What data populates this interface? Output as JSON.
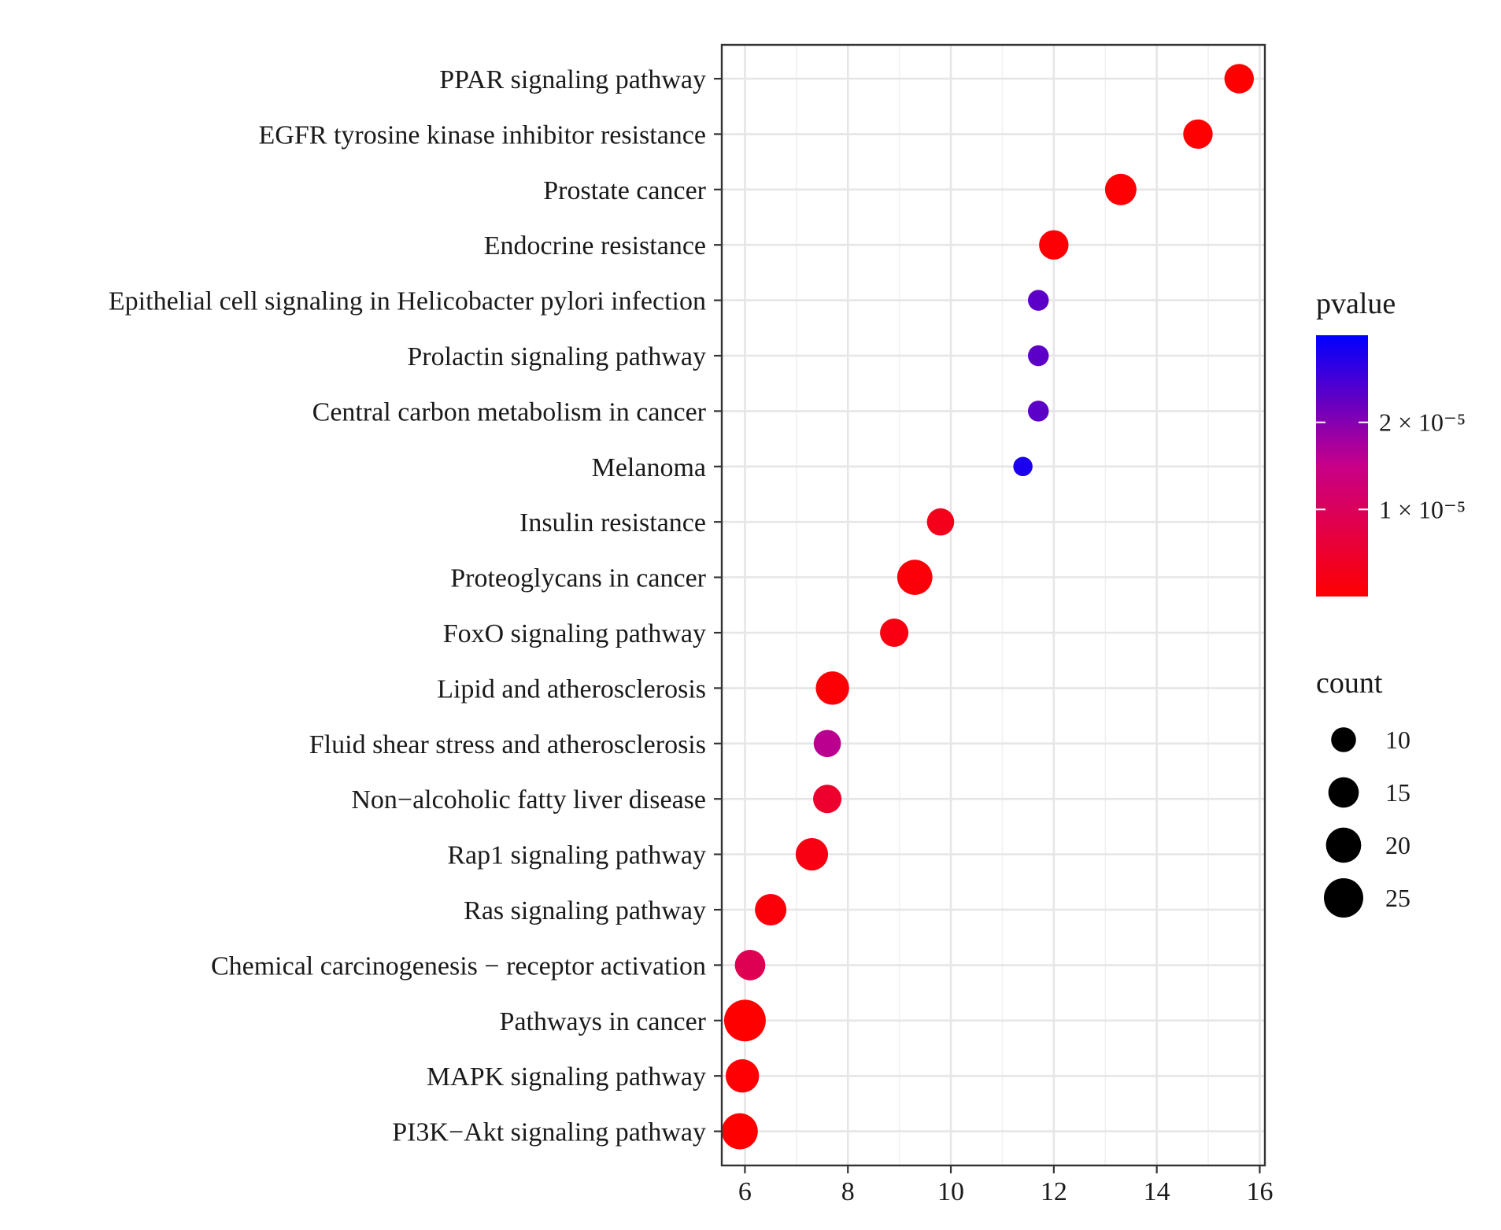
{
  "chart_data": {
    "type": "scatter",
    "title": "",
    "xlabel": "",
    "ylabel": "",
    "xlim": [
      5.55,
      16.1
    ],
    "x_ticks": [
      6,
      8,
      10,
      12,
      14,
      16
    ],
    "x_tick_labels": [
      "6",
      "8",
      "10",
      "12",
      "14",
      "16"
    ],
    "grid": true,
    "categories": [
      "PPAR signaling pathway",
      "EGFR tyrosine kinase inhibitor resistance",
      "Prostate cancer",
      "Endocrine resistance",
      "Epithelial cell signaling in Helicobacter pylori infection",
      "Prolactin signaling pathway",
      "Central carbon metabolism in cancer",
      "Melanoma",
      "Insulin resistance",
      "Proteoglycans in cancer",
      "FoxO signaling pathway",
      "Lipid and atherosclerosis",
      "Fluid shear stress and atherosclerosis",
      "Non−alcoholic fatty liver disease",
      "Rap1 signaling pathway",
      "Ras signaling pathway",
      "Chemical carcinogenesis − receptor activation",
      "Pathways in cancer",
      "MAPK signaling pathway",
      "PI3K−Akt signaling pathway"
    ],
    "points": [
      {
        "x": 15.6,
        "count": 14,
        "pvalue": 1e-07
      },
      {
        "x": 14.8,
        "count": 14,
        "pvalue": 2e-07
      },
      {
        "x": 13.3,
        "count": 16,
        "pvalue": 3e-07
      },
      {
        "x": 12.0,
        "count": 14,
        "pvalue": 5e-07
      },
      {
        "x": 11.7,
        "count": 7,
        "pvalue": 2.3e-05
      },
      {
        "x": 11.7,
        "count": 7,
        "pvalue": 2.3e-05
      },
      {
        "x": 11.7,
        "count": 7,
        "pvalue": 2.3e-05
      },
      {
        "x": 11.4,
        "count": 6,
        "pvalue": 2.8e-05
      },
      {
        "x": 9.8,
        "count": 12,
        "pvalue": 3e-06
      },
      {
        "x": 9.3,
        "count": 20,
        "pvalue": 1e-06
      },
      {
        "x": 8.9,
        "count": 13,
        "pvalue": 2e-06
      },
      {
        "x": 7.7,
        "count": 18,
        "pvalue": 6e-07
      },
      {
        "x": 7.6,
        "count": 12,
        "pvalue": 1.6e-05
      },
      {
        "x": 7.6,
        "count": 13,
        "pvalue": 5e-06
      },
      {
        "x": 7.3,
        "count": 17,
        "pvalue": 2e-06
      },
      {
        "x": 6.5,
        "count": 16,
        "pvalue": 1e-06
      },
      {
        "x": 6.1,
        "count": 15,
        "pvalue": 9e-06
      },
      {
        "x": 6.0,
        "count": 28,
        "pvalue": 2e-08
      },
      {
        "x": 5.95,
        "count": 18,
        "pvalue": 3e-07
      },
      {
        "x": 5.9,
        "count": 21,
        "pvalue": 4e-08
      }
    ],
    "legend": {
      "placement": "right",
      "color": {
        "title": "pvalue",
        "range": [
          0,
          3e-05
        ],
        "ticks": [
          1e-05,
          2e-05
        ],
        "tick_labels": [
          "1 × 10⁻⁵",
          "2 × 10⁻⁵"
        ],
        "low_color": "#ff0000",
        "high_color": "#0000ff"
      },
      "size": {
        "title": "count",
        "values": [
          10,
          15,
          20,
          25
        ],
        "labels": [
          "10",
          "15",
          "20",
          "25"
        ]
      }
    }
  }
}
